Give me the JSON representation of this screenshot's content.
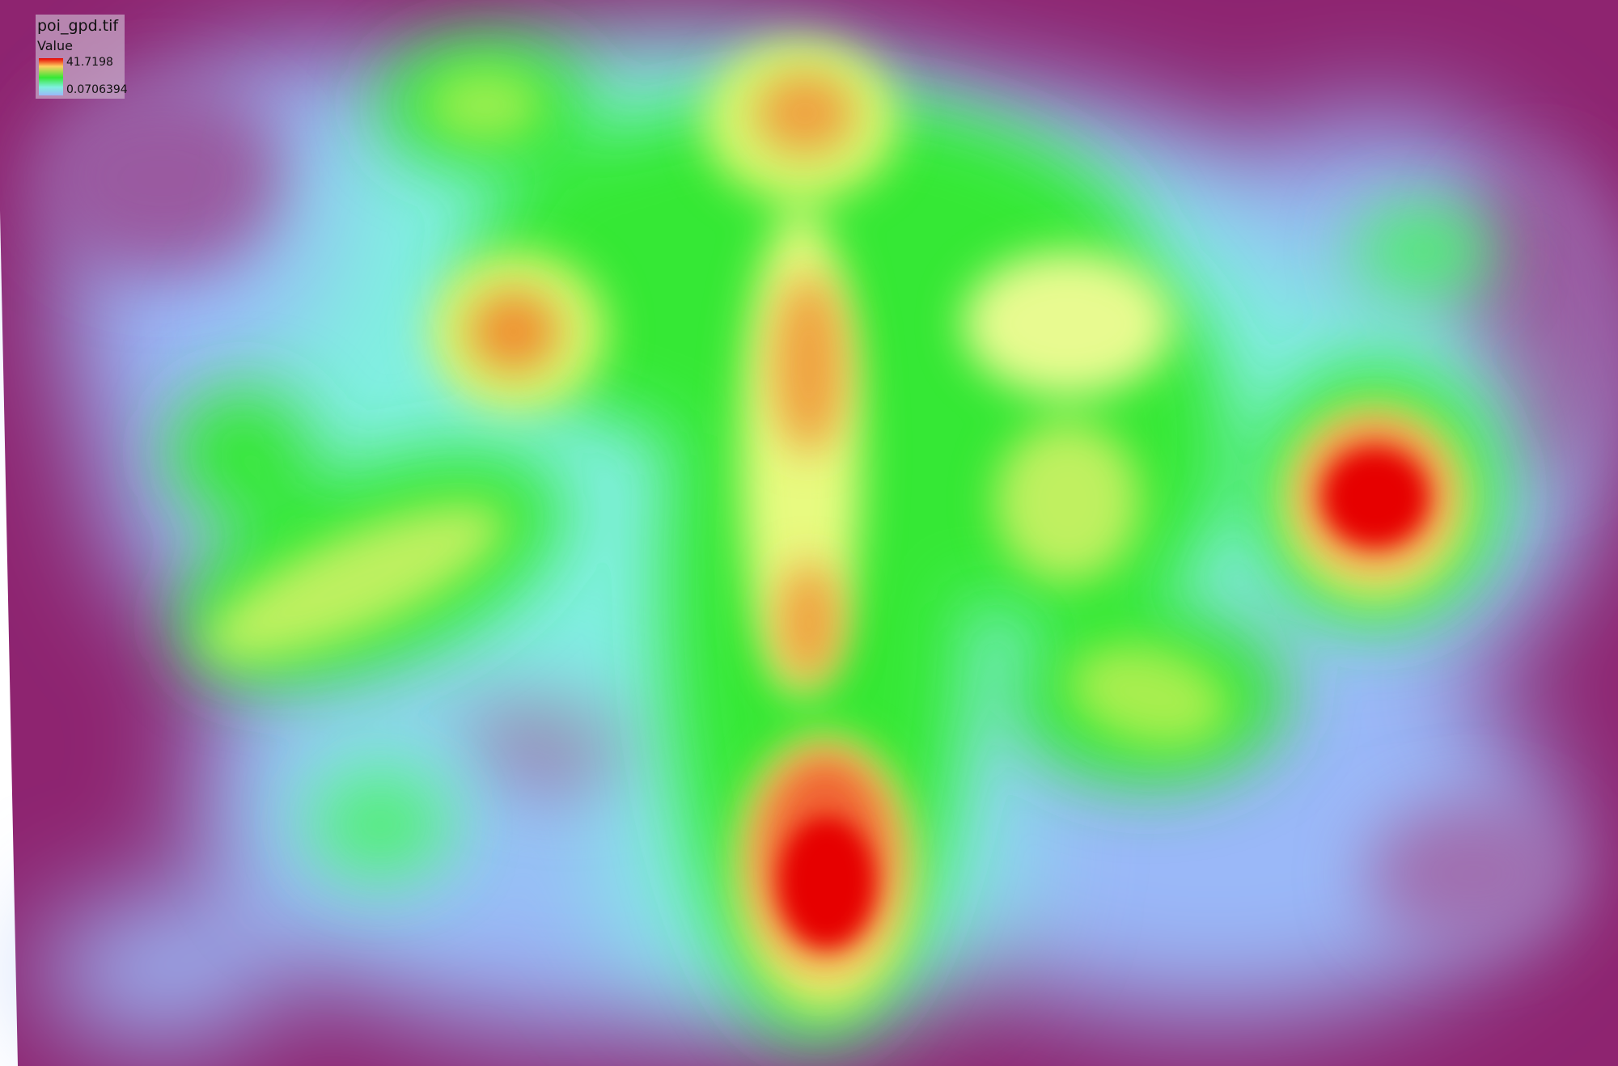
{
  "legend": {
    "title": "poi_gpd.tif",
    "field": "Value",
    "max_label": "41.7198",
    "min_label": "0.0706394",
    "ramp_colors": [
      "#e60000",
      "#ffd060",
      "#35e835",
      "#80f0e0",
      "#9ab8f8"
    ]
  },
  "raster": {
    "background_color": "#8e2470",
    "high_color": "#e60000",
    "low_color": "#9ab8f8"
  }
}
